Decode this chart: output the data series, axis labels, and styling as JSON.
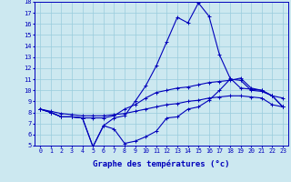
{
  "title": "Graphe des températures (°c)",
  "bg_color": "#cce8f0",
  "grid_color": "#99ccdd",
  "line_color": "#0000bb",
  "ylim": [
    5,
    18
  ],
  "yticks": [
    5,
    6,
    7,
    8,
    9,
    10,
    11,
    12,
    13,
    14,
    15,
    16,
    17,
    18
  ],
  "x_labels": [
    "0",
    "1",
    "2",
    "3",
    "4",
    "5",
    "6",
    "7",
    "8",
    "9",
    "10",
    "11",
    "12",
    "13",
    "14",
    "15",
    "16",
    "17",
    "18",
    "19",
    "20",
    "21",
    "22",
    "23"
  ],
  "line_peak": [
    8.3,
    8.0,
    7.6,
    7.6,
    7.5,
    4.9,
    6.8,
    7.5,
    7.7,
    9.0,
    10.4,
    12.2,
    14.4,
    16.6,
    16.1,
    17.9,
    16.7,
    13.2,
    11.1,
    10.2,
    10.1,
    10.0,
    9.5,
    8.5
  ],
  "line_mid": [
    8.3,
    8.0,
    7.6,
    7.6,
    7.5,
    7.5,
    7.5,
    7.7,
    8.3,
    8.7,
    9.3,
    9.8,
    10.0,
    10.2,
    10.3,
    10.5,
    10.7,
    10.8,
    10.9,
    11.1,
    10.2,
    10.0,
    9.5,
    8.5
  ],
  "line_low": [
    8.3,
    8.0,
    7.6,
    7.6,
    7.5,
    4.9,
    6.8,
    6.5,
    5.2,
    5.4,
    5.8,
    6.3,
    7.5,
    7.6,
    8.3,
    8.5,
    9.1,
    10.0,
    11.0,
    10.9,
    10.0,
    9.9,
    9.5,
    9.3
  ],
  "line_flat": [
    8.3,
    8.1,
    7.9,
    7.8,
    7.7,
    7.7,
    7.7,
    7.8,
    7.9,
    8.1,
    8.3,
    8.5,
    8.7,
    8.8,
    9.0,
    9.1,
    9.3,
    9.4,
    9.5,
    9.5,
    9.4,
    9.3,
    8.7,
    8.5
  ]
}
